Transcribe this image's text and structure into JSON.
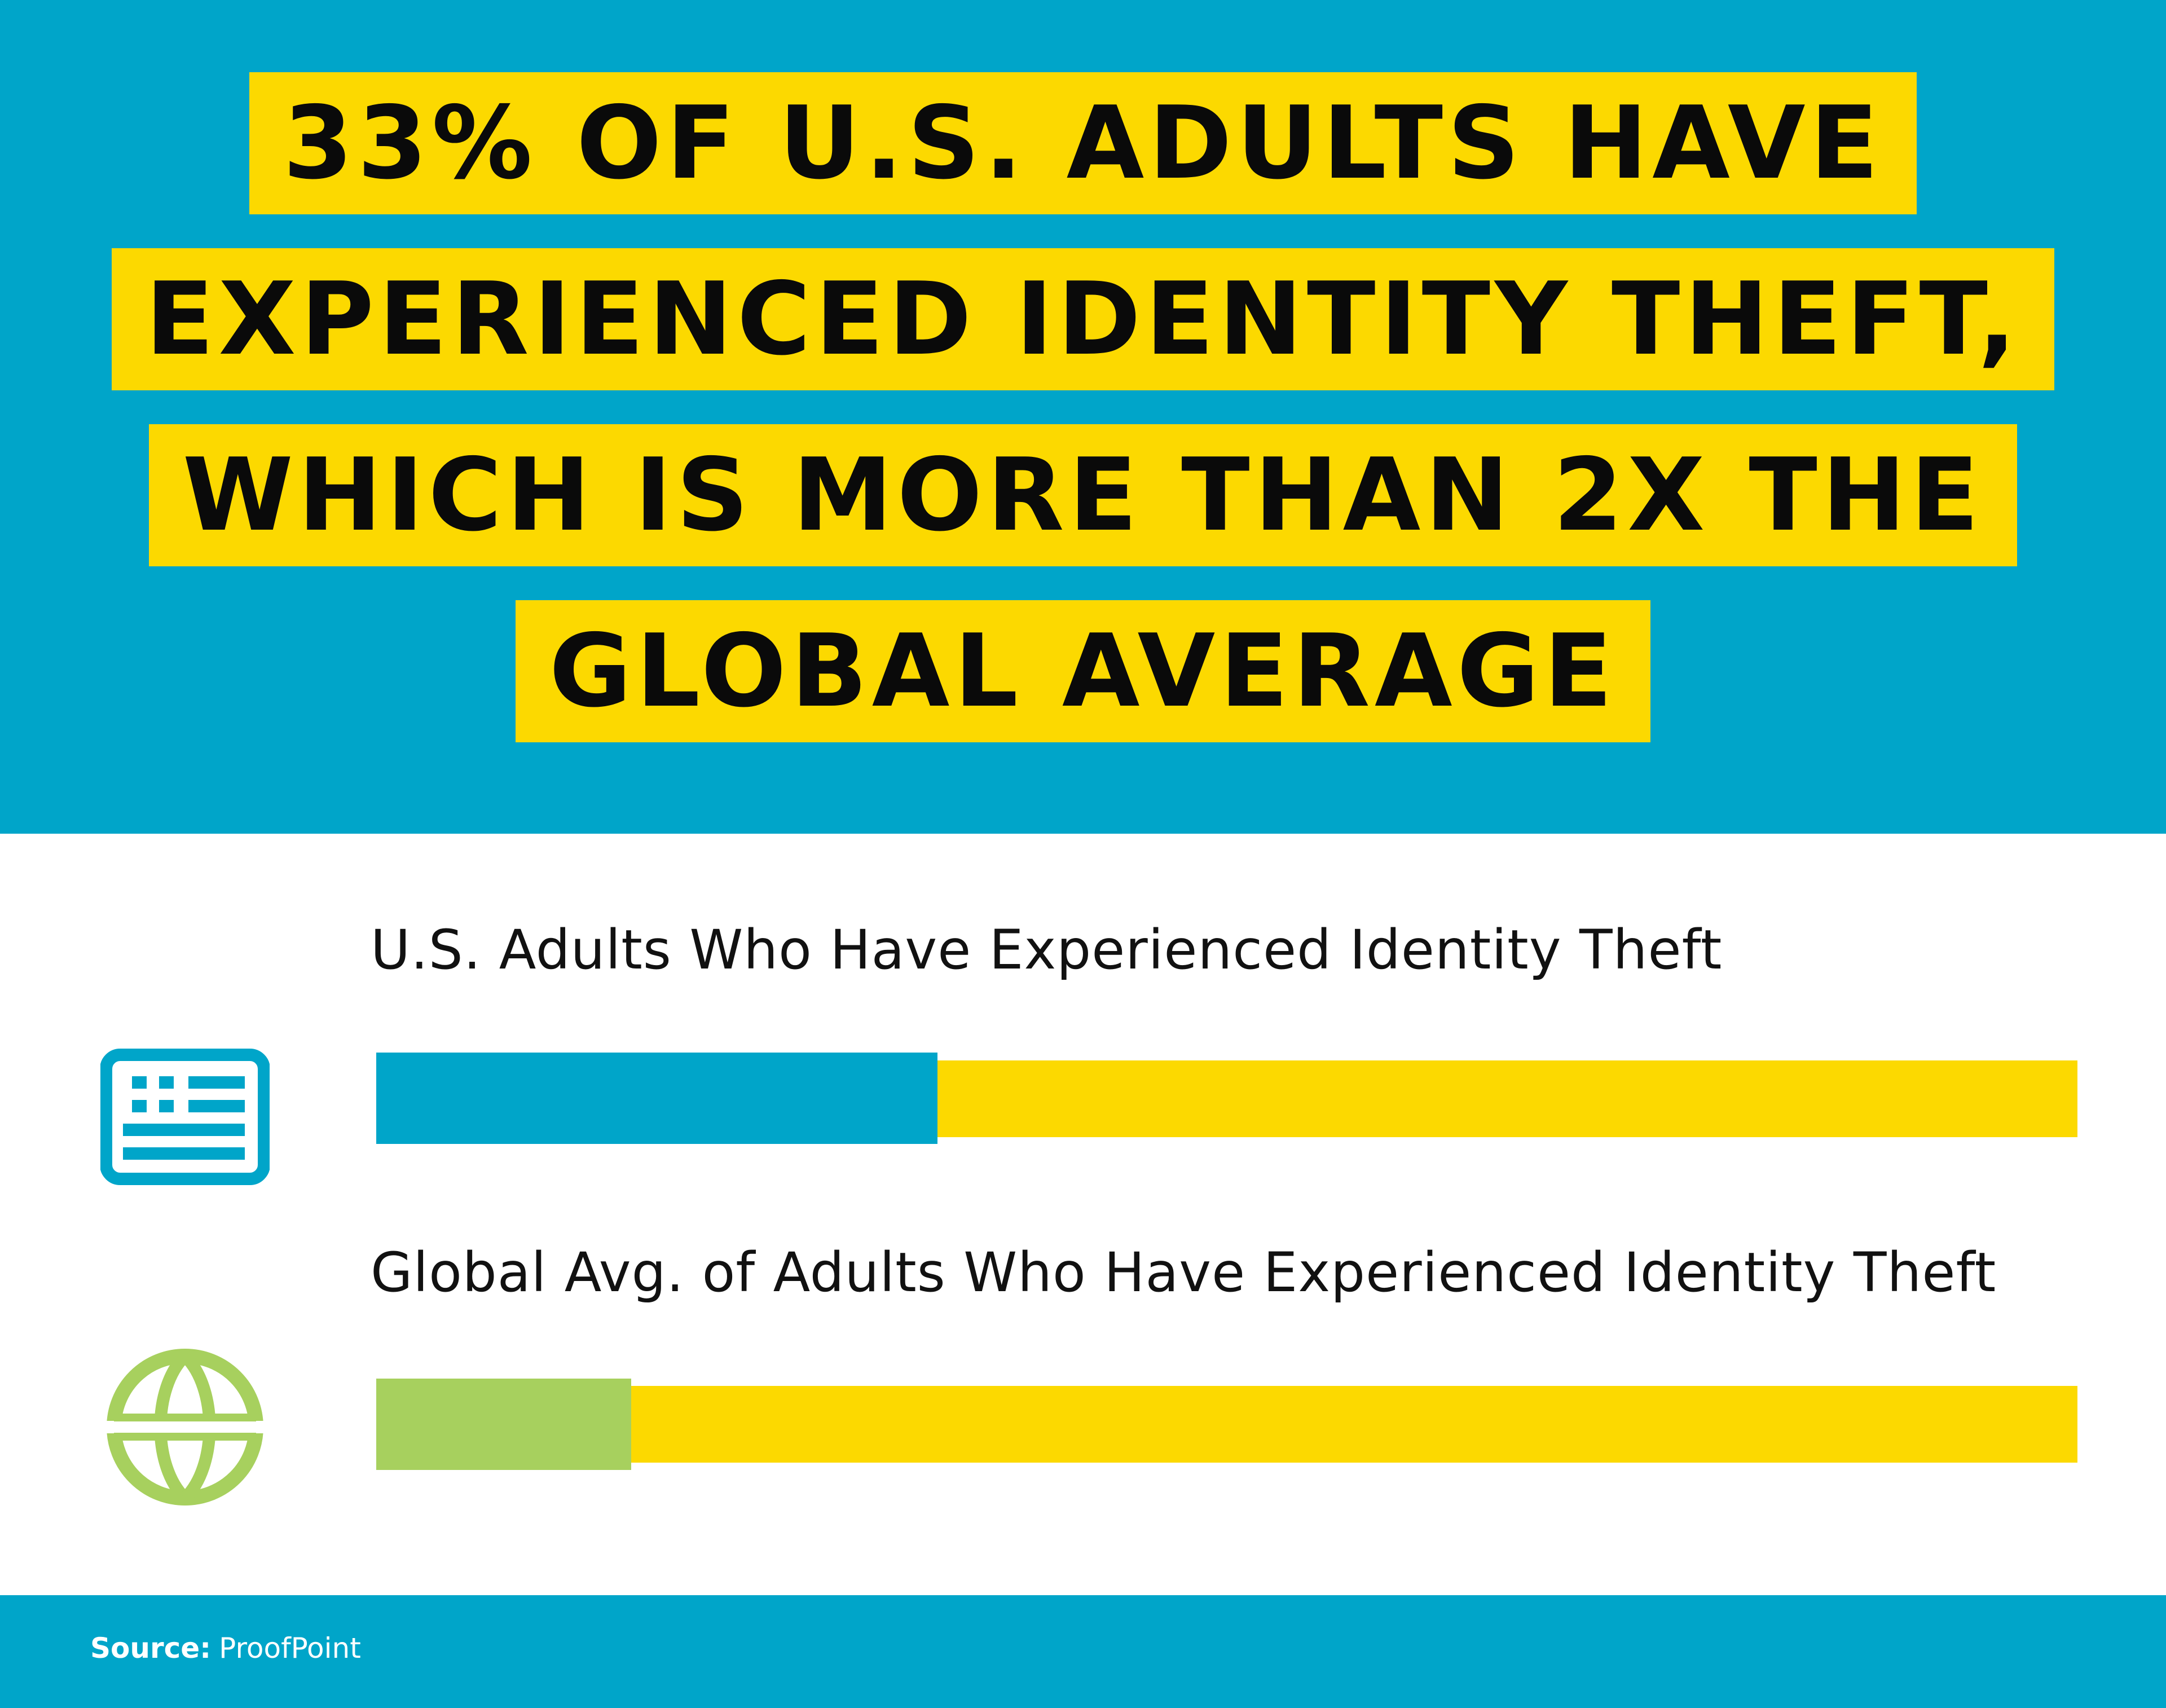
{
  "headline": {
    "lines": [
      "33% of U.S. Adults Have",
      "Experienced Identity Theft,",
      "Which Is More Than 2X the",
      "Global Average"
    ]
  },
  "colors": {
    "background_top": "#00a5c9",
    "highlight": "#fcd900",
    "us_bar": "#00a5c9",
    "global_bar": "#a7d05e",
    "footer": "#00a5c9"
  },
  "icons": {
    "us": "us-flag-icon",
    "global": "globe-icon"
  },
  "chart_data": {
    "type": "bar",
    "orientation": "horizontal",
    "scale_max": 100,
    "series": [
      {
        "name": "U.S. Adults Who Have Experienced Identity Theft",
        "value": 33
      },
      {
        "name": "Global Avg. of Adults Who Have Experienced Identity Theft",
        "value": 15
      }
    ],
    "title": "",
    "xlabel": "",
    "ylabel": ""
  },
  "footer": {
    "source_label": "Source:",
    "source_value": "ProofPoint"
  }
}
